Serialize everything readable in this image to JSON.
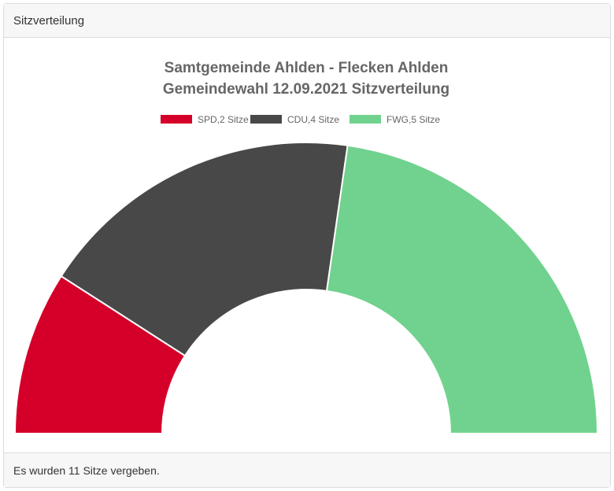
{
  "header": {
    "title": "Sitzverteilung"
  },
  "footer": {
    "text": "Es wurden 11 Sitze vergeben."
  },
  "chart_data": {
    "type": "pie",
    "variant": "half-doughnut",
    "title": [
      "Samtgemeinde Ahlden - Flecken Ahlden",
      "Gemeindewahl 12.09.2021 Sitzverteilung"
    ],
    "legend_position": "top",
    "categories": [
      "SPD,2 Sitze",
      "CDU,4 Sitze",
      "FWG,5 Sitze"
    ],
    "values": [
      2,
      4,
      5
    ],
    "colors": [
      "#d50029",
      "#484848",
      "#70d28e"
    ]
  }
}
